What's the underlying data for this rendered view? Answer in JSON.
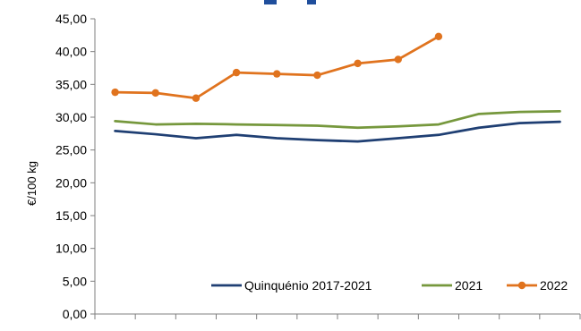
{
  "chart_data": {
    "type": "line",
    "title": "",
    "xlabel": "",
    "ylabel": "€/100 kg",
    "ylim": [
      0,
      45
    ],
    "y_ticks": [
      "0,00",
      "5,00",
      "10,00",
      "15,00",
      "20,00",
      "25,00",
      "30,00",
      "35,00",
      "40,00",
      "45,00"
    ],
    "x_count": 12,
    "grid": false,
    "legend_placement": "bottom-right",
    "series": [
      {
        "name": "Quinquénio  2017-2021",
        "color": "#1f3f73",
        "marker": false,
        "values": [
          27.9,
          27.4,
          26.8,
          27.3,
          26.8,
          26.5,
          26.3,
          26.8,
          27.3,
          28.4,
          29.1,
          29.3
        ]
      },
      {
        "name": "2021",
        "color": "#76983d",
        "marker": false,
        "values": [
          29.4,
          28.9,
          29.0,
          28.9,
          28.8,
          28.7,
          28.4,
          28.6,
          28.9,
          30.5,
          30.8,
          30.9
        ]
      },
      {
        "name": "2022",
        "color": "#e0731e",
        "marker": true,
        "values": [
          33.8,
          33.7,
          32.9,
          36.8,
          36.6,
          36.4,
          38.2,
          38.8,
          42.3
        ]
      }
    ]
  }
}
